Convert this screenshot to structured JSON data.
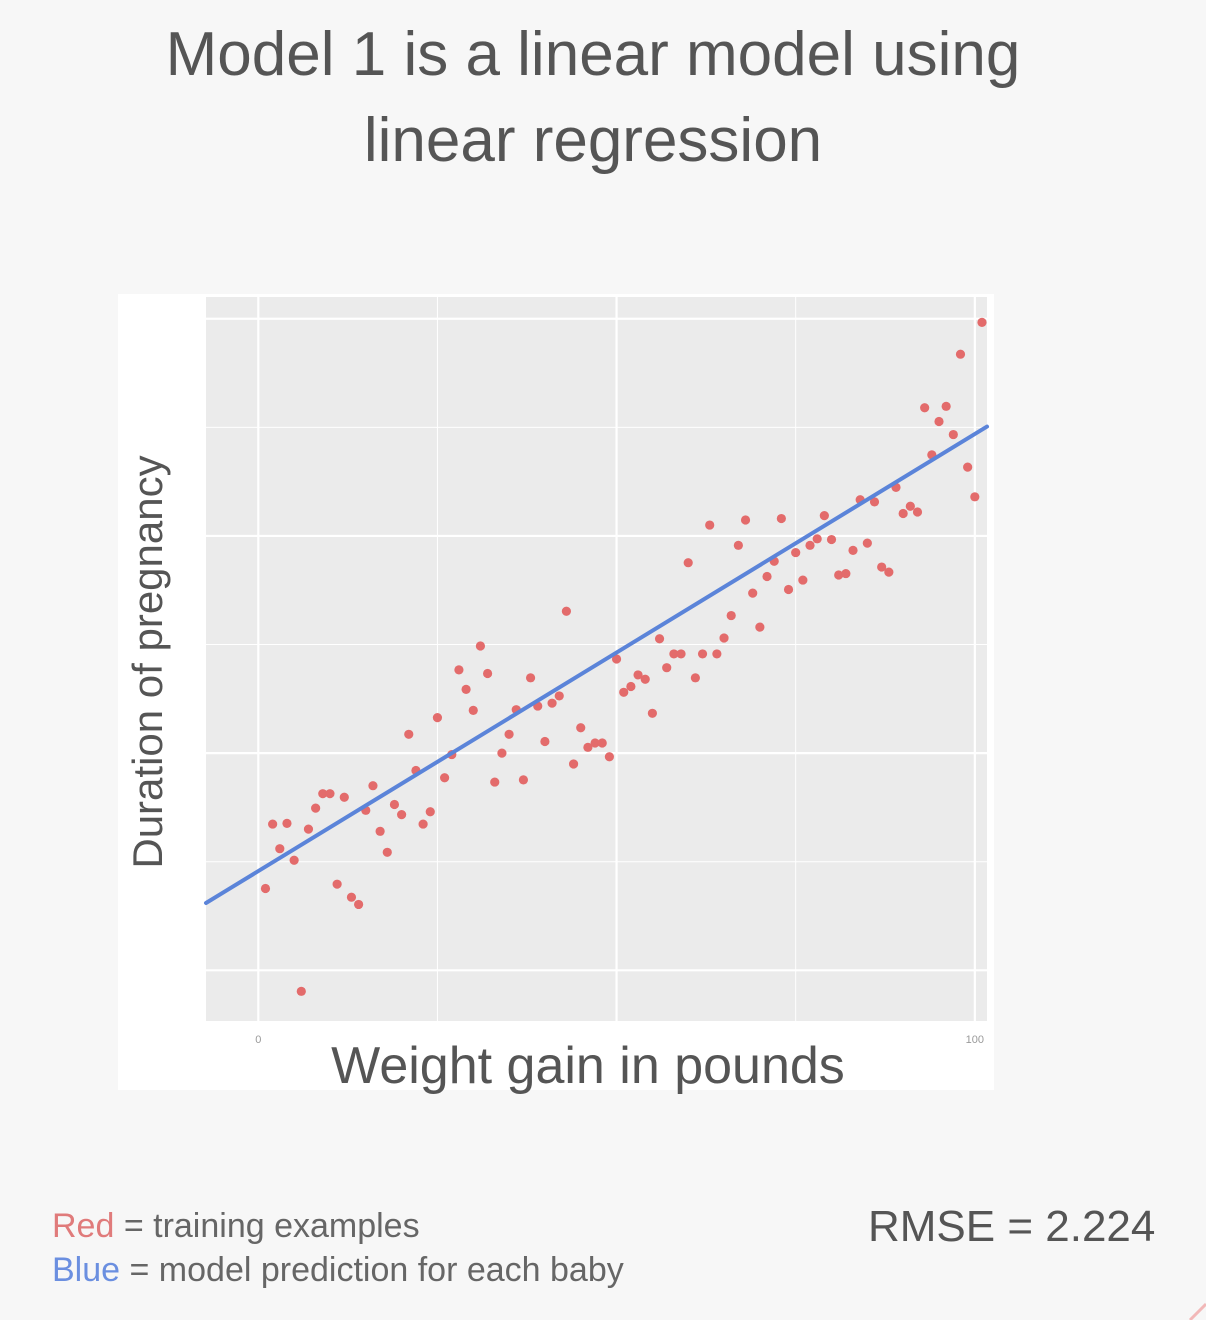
{
  "title": {
    "line1": "Model 1 is a linear model using",
    "line2": "linear regression"
  },
  "legend": {
    "red_word": "Red",
    "red_rest": " = training examples",
    "blue_word": "Blue",
    "blue_rest": " = model prediction for each baby"
  },
  "rmse": "RMSE = 2.224",
  "colors": {
    "points": "#e36b6b",
    "line": "#5b84d9",
    "panel": "#ebebeb",
    "grid": "#ffffff"
  },
  "chart_data": {
    "type": "scatter",
    "xlabel": "Weight gain in pounds",
    "ylabel": "Duration of pregnancy",
    "xlim": [
      -7.3,
      101.7
    ],
    "ylim": [
      0,
      1
    ],
    "x_ticks": [
      0,
      100
    ],
    "x_tick_labels": [
      "0",
      "100"
    ],
    "grid": true,
    "series": [
      {
        "role": "training examples",
        "points": [
          [
            1,
            0.183
          ],
          [
            2,
            0.272
          ],
          [
            3,
            0.238
          ],
          [
            4,
            0.273
          ],
          [
            5,
            0.222
          ],
          [
            6,
            0.041
          ],
          [
            7,
            0.265
          ],
          [
            8,
            0.294
          ],
          [
            9,
            0.314
          ],
          [
            10,
            0.314
          ],
          [
            11,
            0.189
          ],
          [
            12,
            0.309
          ],
          [
            13,
            0.171
          ],
          [
            14,
            0.161
          ],
          [
            15,
            0.291
          ],
          [
            16,
            0.325
          ],
          [
            17,
            0.262
          ],
          [
            18,
            0.233
          ],
          [
            19,
            0.299
          ],
          [
            20,
            0.285
          ],
          [
            21,
            0.396
          ],
          [
            22,
            0.346
          ],
          [
            23,
            0.272
          ],
          [
            24,
            0.289
          ],
          [
            25,
            0.419
          ],
          [
            26,
            0.336
          ],
          [
            27,
            0.368
          ],
          [
            28,
            0.485
          ],
          [
            29,
            0.458
          ],
          [
            30,
            0.429
          ],
          [
            31,
            0.518
          ],
          [
            32,
            0.48
          ],
          [
            33,
            0.33
          ],
          [
            34,
            0.37
          ],
          [
            35,
            0.396
          ],
          [
            36,
            0.43
          ],
          [
            37,
            0.333
          ],
          [
            38,
            0.474
          ],
          [
            39,
            0.435
          ],
          [
            40,
            0.386
          ],
          [
            41,
            0.439
          ],
          [
            42,
            0.449
          ],
          [
            43,
            0.566
          ],
          [
            44,
            0.355
          ],
          [
            45,
            0.405
          ],
          [
            46,
            0.378
          ],
          [
            47,
            0.384
          ],
          [
            48,
            0.384
          ],
          [
            49,
            0.365
          ],
          [
            50,
            0.5
          ],
          [
            51,
            0.454
          ],
          [
            52,
            0.462
          ],
          [
            53,
            0.478
          ],
          [
            54,
            0.472
          ],
          [
            55,
            0.425
          ],
          [
            56,
            0.528
          ],
          [
            57,
            0.488
          ],
          [
            58,
            0.507
          ],
          [
            59,
            0.507
          ],
          [
            60,
            0.633
          ],
          [
            61,
            0.474
          ],
          [
            62,
            0.507
          ],
          [
            63,
            0.685
          ],
          [
            64,
            0.507
          ],
          [
            65,
            0.529
          ],
          [
            66,
            0.56
          ],
          [
            67,
            0.657
          ],
          [
            68,
            0.692
          ],
          [
            69,
            0.591
          ],
          [
            70,
            0.544
          ],
          [
            71,
            0.614
          ],
          [
            72,
            0.635
          ],
          [
            73,
            0.694
          ],
          [
            74,
            0.596
          ],
          [
            75,
            0.647
          ],
          [
            76,
            0.609
          ],
          [
            77,
            0.657
          ],
          [
            78,
            0.666
          ],
          [
            79,
            0.698
          ],
          [
            80,
            0.665
          ],
          [
            81,
            0.616
          ],
          [
            82,
            0.618
          ],
          [
            83,
            0.65
          ],
          [
            84,
            0.72
          ],
          [
            85,
            0.66
          ],
          [
            86,
            0.717
          ],
          [
            87,
            0.627
          ],
          [
            88,
            0.62
          ],
          [
            89,
            0.737
          ],
          [
            90,
            0.701
          ],
          [
            91,
            0.711
          ],
          [
            92,
            0.703
          ],
          [
            93,
            0.847
          ],
          [
            94,
            0.782
          ],
          [
            95,
            0.828
          ],
          [
            96,
            0.849
          ],
          [
            97,
            0.81
          ],
          [
            98,
            0.921
          ],
          [
            99,
            0.765
          ],
          [
            100,
            0.724
          ],
          [
            101,
            0.965
          ]
        ]
      },
      {
        "role": "model prediction",
        "line": [
          [
            -7.3,
            0.163
          ],
          [
            101.7,
            0.821
          ]
        ]
      }
    ]
  }
}
